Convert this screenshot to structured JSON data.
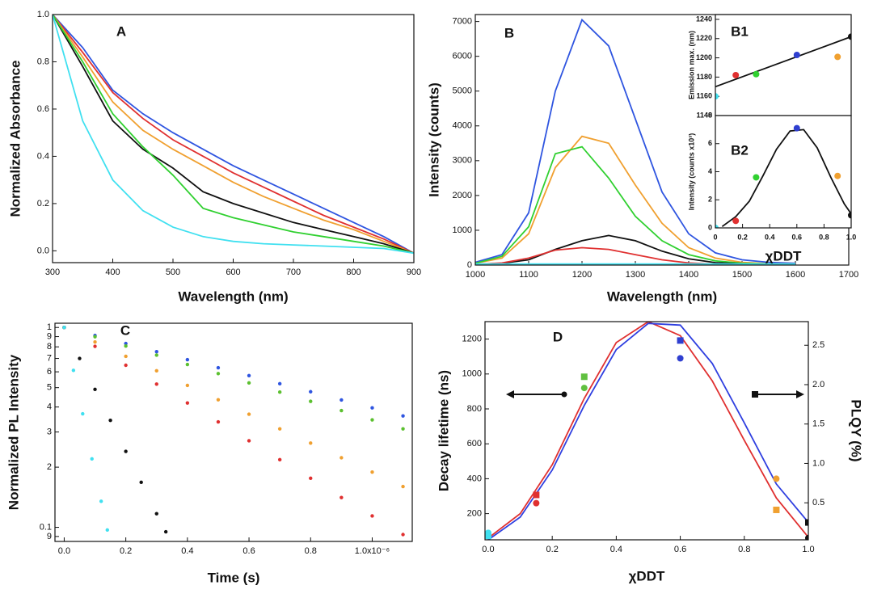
{
  "chart_data": [
    {
      "type": "line",
      "panel_label": "A",
      "xlabel": "Wavelength (nm)",
      "ylabel": "Normalized Absorbance",
      "x": [
        300,
        350,
        400,
        450,
        500,
        550,
        600,
        650,
        700,
        750,
        800,
        850,
        900
      ],
      "xlim": [
        300,
        900
      ],
      "ylim": [
        -0.05,
        1.0
      ],
      "xticks": [
        300,
        400,
        500,
        600,
        700,
        800,
        900
      ],
      "yticks": [
        {
          "value": 0,
          "label": "0.0"
        },
        {
          "value": 0.2,
          "label": "0.2"
        },
        {
          "value": 0.4,
          "label": "0.4"
        },
        {
          "value": 0.6,
          "label": "0.6"
        },
        {
          "value": 0.8,
          "label": "0.8"
        },
        {
          "value": 1,
          "label": "1.0"
        }
      ],
      "series": [
        {
          "color": "#2f55e0",
          "style": "line",
          "values": [
            1.0,
            0.86,
            0.68,
            0.58,
            0.5,
            0.43,
            0.36,
            0.3,
            0.24,
            0.18,
            0.12,
            0.06,
            -0.01
          ]
        },
        {
          "color": "#e03030",
          "style": "line",
          "values": [
            1.0,
            0.84,
            0.67,
            0.56,
            0.47,
            0.4,
            0.33,
            0.27,
            0.21,
            0.15,
            0.1,
            0.05,
            -0.01
          ]
        },
        {
          "color": "#f0a030",
          "style": "line",
          "values": [
            1.0,
            0.82,
            0.63,
            0.51,
            0.43,
            0.36,
            0.29,
            0.23,
            0.18,
            0.13,
            0.09,
            0.04,
            -0.01
          ]
        },
        {
          "color": "#111111",
          "style": "line",
          "values": [
            1.0,
            0.78,
            0.55,
            0.43,
            0.35,
            0.25,
            0.2,
            0.16,
            0.12,
            0.09,
            0.06,
            0.03,
            -0.01
          ]
        },
        {
          "color": "#30d030",
          "style": "line",
          "values": [
            1.0,
            0.8,
            0.58,
            0.44,
            0.32,
            0.18,
            0.14,
            0.11,
            0.08,
            0.06,
            0.04,
            0.02,
            -0.01
          ]
        },
        {
          "color": "#40e0f0",
          "style": "line",
          "values": [
            1.0,
            0.55,
            0.3,
            0.17,
            0.1,
            0.06,
            0.04,
            0.03,
            0.025,
            0.02,
            0.015,
            0.01,
            -0.01
          ]
        }
      ]
    },
    {
      "type": "line",
      "panel_label": "B",
      "xlabel": "Wavelength (nm)",
      "ylabel": "Intensity (counts)",
      "x": [
        1000,
        1050,
        1100,
        1150,
        1200,
        1250,
        1300,
        1350,
        1400,
        1450,
        1500,
        1550,
        1600
      ],
      "xlim": [
        1000,
        1700
      ],
      "ylim": [
        0,
        7200
      ],
      "xticks": [
        1000,
        1100,
        1200,
        1300,
        1400,
        1500,
        1600,
        1700
      ],
      "yticks": [
        0,
        1000,
        2000,
        3000,
        4000,
        5000,
        6000,
        7000
      ],
      "series": [
        {
          "color": "#2f55e0",
          "style": "line",
          "values": [
            80,
            300,
            1500,
            5000,
            7050,
            6300,
            4200,
            2100,
            900,
            350,
            150,
            80,
            50
          ]
        },
        {
          "color": "#f0a030",
          "style": "line",
          "values": [
            50,
            200,
            900,
            2800,
            3700,
            3500,
            2300,
            1200,
            500,
            200,
            80,
            40,
            30
          ]
        },
        {
          "color": "#30d030",
          "style": "line",
          "values": [
            50,
            250,
            1100,
            3200,
            3400,
            2500,
            1400,
            700,
            300,
            120,
            50,
            30,
            20
          ]
        },
        {
          "color": "#111111",
          "style": "line",
          "values": [
            20,
            50,
            150,
            450,
            700,
            850,
            700,
            400,
            180,
            70,
            30,
            15,
            10
          ]
        },
        {
          "color": "#e03030",
          "style": "line",
          "values": [
            20,
            60,
            200,
            430,
            500,
            450,
            300,
            150,
            60,
            25,
            10,
            5,
            5
          ]
        },
        {
          "color": "#40e0f0",
          "style": "line",
          "values": [
            30,
            30,
            30,
            30,
            30,
            30,
            30,
            30,
            30,
            30,
            30,
            30,
            30
          ]
        }
      ]
    },
    {
      "type": "scatter",
      "panel_label": "B1",
      "ylabel": "Emission max. (nm)",
      "x": [
        0,
        0.15,
        0.3,
        0.6,
        0.9,
        1.0
      ],
      "xlim": [
        0,
        1.0
      ],
      "ylim": [
        1140,
        1245
      ],
      "xticks": [],
      "yticks": [
        1140,
        1160,
        1180,
        1200,
        1220,
        1240
      ],
      "series": [
        {
          "color": "#111111",
          "style": "line",
          "x": [
            0,
            1.0
          ],
          "values": [
            1170,
            1222
          ]
        },
        {
          "style": "markers",
          "marker": "circle",
          "colors": [
            "#40e0f0",
            "#e03030",
            "#30d030",
            "#2f3fd0",
            "#f0a030",
            "#111111"
          ],
          "values": [
            1160,
            1182,
            1183,
            1203,
            1201,
            1222
          ]
        }
      ]
    },
    {
      "type": "scatter",
      "panel_label": "B2",
      "xlabel": "χDDT",
      "ylabel": "Intensity (counts x10³)",
      "x": [
        0,
        0.15,
        0.3,
        0.6,
        0.9,
        1.0
      ],
      "xlim": [
        0,
        1.0
      ],
      "ylim": [
        0,
        8
      ],
      "xticks": [
        0,
        {
          "value": 0.2,
          "label": "0.2"
        },
        {
          "value": 0.4,
          "label": "0.4"
        },
        {
          "value": 0.6,
          "label": "0.6"
        },
        {
          "value": 0.8,
          "label": "0.8"
        },
        {
          "value": 1,
          "label": "1.0"
        }
      ],
      "yticks": [
        0,
        2,
        4,
        6,
        8
      ],
      "series": [
        {
          "color": "#111111",
          "style": "line",
          "x": [
            0.05,
            0.15,
            0.25,
            0.35,
            0.45,
            0.55,
            0.65,
            0.75,
            0.85,
            0.95,
            1.0
          ],
          "values": [
            0.1,
            0.8,
            1.9,
            3.7,
            5.6,
            6.9,
            7.0,
            5.7,
            3.6,
            1.7,
            1.0
          ]
        },
        {
          "style": "markers",
          "marker": "circle",
          "colors": [
            "#40e0f0",
            "#e03030",
            "#30d030",
            "#2f3fd0",
            "#f0a030",
            "#111111"
          ],
          "values": [
            0,
            0.5,
            3.6,
            7.1,
            3.7,
            0.9
          ]
        }
      ]
    },
    {
      "type": "scatter",
      "panel_label": "C",
      "xlabel": "Time (s)",
      "ylabel": "Normalized PL Intensity",
      "log_y": true,
      "x": [
        0,
        1e-07,
        2e-07,
        3e-07,
        4e-07,
        5e-07,
        6e-07,
        7e-07,
        8e-07,
        9e-07,
        1e-06,
        1.1e-06
      ],
      "xlim": [
        -3e-08,
        1.13e-06
      ],
      "ylim": [
        0.085,
        1.05
      ],
      "xticks": [
        {
          "value": 0,
          "label": "0.0"
        },
        {
          "value": 2e-07,
          "label": "0.2"
        },
        {
          "value": 4e-07,
          "label": "0.4"
        },
        {
          "value": 6e-07,
          "label": "0.6"
        },
        {
          "value": 8e-07,
          "label": "0.8"
        },
        {
          "value": 1e-06,
          "label": "1.0x10⁻⁶"
        }
      ],
      "yticks": [
        1,
        {
          "value": 0.9,
          "label": "9"
        },
        {
          "value": 0.8,
          "label": "8"
        },
        {
          "value": 0.7,
          "label": "7"
        },
        {
          "value": 0.6,
          "label": "6"
        },
        {
          "value": 0.5,
          "label": "5"
        },
        {
          "value": 0.4,
          "label": "4"
        },
        {
          "value": 0.3,
          "label": "3"
        },
        {
          "value": 0.2,
          "label": "2"
        },
        0.1,
        {
          "value": 0.09,
          "label": "9"
        }
      ],
      "series": [
        {
          "color": "#2f55e0",
          "style": "dots",
          "values": [
            1,
            0.912,
            0.831,
            0.757,
            0.69,
            0.629,
            0.574,
            0.523,
            0.477,
            0.434,
            0.396,
            0.361
          ]
        },
        {
          "color": "#5cc030",
          "style": "dots",
          "values": [
            1,
            0.899,
            0.808,
            0.727,
            0.653,
            0.588,
            0.528,
            0.475,
            0.427,
            0.384,
            0.345,
            0.311
          ]
        },
        {
          "color": "#f0a030",
          "style": "dots",
          "values": [
            1,
            0.846,
            0.717,
            0.607,
            0.513,
            0.435,
            0.368,
            0.311,
            0.264,
            0.223,
            0.189,
            0.16
          ]
        },
        {
          "color": "#e03030",
          "style": "dots",
          "values": [
            1,
            0.805,
            0.647,
            0.521,
            0.419,
            0.337,
            0.271,
            0.218,
            0.176,
            0.141,
            0.114,
            0.092
          ]
        },
        {
          "color": "#111111",
          "style": "dots",
          "x": [
            0,
            5e-08,
            1e-07,
            1.5e-07,
            2e-07,
            2.5e-07,
            3e-07,
            3.3e-07
          ],
          "values": [
            1,
            0.7,
            0.49,
            0.343,
            0.24,
            0.168,
            0.117,
            0.095
          ]
        },
        {
          "color": "#40e0f0",
          "style": "dots",
          "x": [
            0,
            3e-08,
            6e-08,
            9e-08,
            1.2e-07,
            1.4e-07
          ],
          "values": [
            1,
            0.61,
            0.37,
            0.22,
            0.135,
            0.097
          ]
        }
      ]
    },
    {
      "type": "scatter",
      "panel_label": "D",
      "xlabel": "χDDT",
      "ylabel": "Decay lifetime (ns)",
      "y2label": "PLQY (%)",
      "x": [
        0,
        0.15,
        0.3,
        0.6,
        0.9,
        1.0
      ],
      "xlim": [
        -0.01,
        1.0
      ],
      "ylim": [
        50,
        1300
      ],
      "y2lim": [
        0.03,
        2.8
      ],
      "xticks": [
        {
          "value": 0,
          "label": "0.0"
        },
        {
          "value": 0.2,
          "label": "0.2"
        },
        {
          "value": 0.4,
          "label": "0.4"
        },
        {
          "value": 0.6,
          "label": "0.6"
        },
        {
          "value": 0.8,
          "label": "0.8"
        },
        {
          "value": 1,
          "label": "1.0"
        }
      ],
      "yticks": [
        200,
        400,
        600,
        800,
        1000,
        1200
      ],
      "y2ticks": [
        {
          "value": 0.5,
          "label": "0.5"
        },
        {
          "value": 1,
          "label": "1.0"
        },
        {
          "value": 1.5,
          "label": "1.5"
        },
        {
          "value": 2,
          "label": "2.0"
        },
        {
          "value": 2.5,
          "label": "2.5"
        }
      ],
      "series": [
        {
          "color": "#e03030",
          "style": "line",
          "x": [
            0,
            0.1,
            0.2,
            0.3,
            0.4,
            0.5,
            0.6,
            0.7,
            0.8,
            0.9,
            1.0
          ],
          "values": [
            60,
            200,
            480,
            860,
            1180,
            1300,
            1220,
            960,
            620,
            290,
            65
          ]
        },
        {
          "color": "#2f3fe0",
          "style": "line",
          "x": [
            0,
            0.1,
            0.2,
            0.3,
            0.4,
            0.5,
            0.6,
            0.7,
            0.8,
            0.9,
            1.0
          ],
          "values": [
            50,
            180,
            450,
            820,
            1140,
            1290,
            1280,
            1060,
            720,
            370,
            150
          ]
        },
        {
          "style": "markers",
          "marker": "circle",
          "colors": [
            "#40e0f0",
            "#e03030",
            "#60c040",
            "#2f3fd0",
            "#f0a030",
            "#111111"
          ],
          "values": [
            90,
            260,
            920,
            1090,
            400,
            60
          ]
        },
        {
          "style": "markers",
          "marker": "square",
          "axis": "y2",
          "colors": [
            "#40e0f0",
            "#e03030",
            "#60c040",
            "#2f3fd0",
            "#f0a030",
            "#111111"
          ],
          "values": [
            0.08,
            0.6,
            2.1,
            2.56,
            0.41,
            0.25
          ]
        }
      ]
    }
  ]
}
